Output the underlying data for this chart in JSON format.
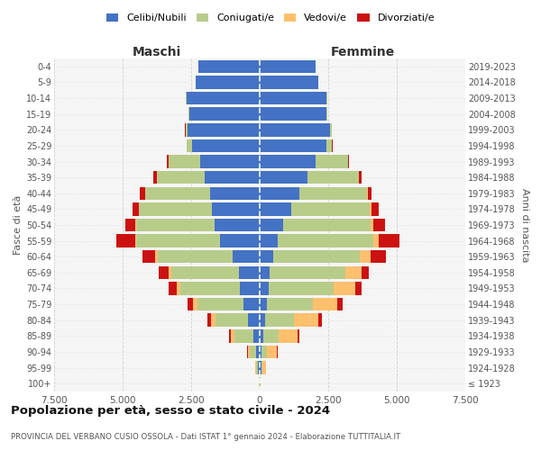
{
  "age_groups": [
    "100+",
    "95-99",
    "90-94",
    "85-89",
    "80-84",
    "75-79",
    "70-74",
    "65-69",
    "60-64",
    "55-59",
    "50-54",
    "45-49",
    "40-44",
    "35-39",
    "30-34",
    "25-29",
    "20-24",
    "15-19",
    "10-14",
    "5-9",
    "0-4"
  ],
  "birth_years": [
    "≤ 1923",
    "1924-1928",
    "1929-1933",
    "1934-1938",
    "1939-1943",
    "1944-1948",
    "1949-1953",
    "1954-1958",
    "1959-1963",
    "1964-1968",
    "1969-1973",
    "1974-1978",
    "1979-1983",
    "1984-1988",
    "1989-1993",
    "1994-1998",
    "1999-2003",
    "2004-2008",
    "2009-2013",
    "2014-2018",
    "2019-2023"
  ],
  "maschi": {
    "celibi": [
      15,
      70,
      120,
      230,
      420,
      580,
      720,
      760,
      980,
      1450,
      1650,
      1750,
      1820,
      2000,
      2180,
      2480,
      2630,
      2580,
      2680,
      2330,
      2230
    ],
    "coniugati": [
      8,
      70,
      240,
      680,
      1180,
      1680,
      2180,
      2450,
      2750,
      3050,
      2850,
      2650,
      2350,
      1750,
      1150,
      180,
      80,
      20,
      8,
      0,
      0
    ],
    "vedovi": [
      4,
      25,
      70,
      140,
      170,
      170,
      140,
      110,
      75,
      45,
      25,
      8,
      4,
      4,
      4,
      0,
      0,
      0,
      0,
      0,
      0
    ],
    "divorziati": [
      2,
      8,
      25,
      70,
      140,
      190,
      280,
      380,
      480,
      680,
      380,
      240,
      190,
      120,
      45,
      18,
      8,
      4,
      0,
      0,
      0
    ]
  },
  "femmine": {
    "celibi": [
      15,
      55,
      75,
      120,
      190,
      260,
      330,
      360,
      480,
      670,
      870,
      1150,
      1450,
      1750,
      2050,
      2450,
      2550,
      2450,
      2450,
      2150,
      2050
    ],
    "coniugati": [
      4,
      40,
      180,
      580,
      1070,
      1680,
      2370,
      2780,
      3170,
      3470,
      3170,
      2870,
      2470,
      1870,
      1170,
      180,
      80,
      20,
      8,
      0,
      0
    ],
    "vedovi": [
      25,
      140,
      380,
      680,
      880,
      880,
      780,
      580,
      380,
      190,
      90,
      45,
      18,
      8,
      4,
      4,
      4,
      0,
      0,
      0,
      0
    ],
    "divorziati": [
      2,
      8,
      25,
      70,
      140,
      190,
      240,
      270,
      580,
      780,
      430,
      280,
      140,
      90,
      45,
      18,
      8,
      4,
      0,
      0,
      0
    ]
  },
  "colors": {
    "celibi": "#4472c4",
    "coniugati": "#b8cc8a",
    "vedovi": "#ffc06e",
    "divorziati": "#cc1111"
  },
  "title": "Popolazione per età, sesso e stato civile - 2024",
  "subtitle": "PROVINCIA DEL VERBANO CUSIO OSSOLA - Dati ISTAT 1° gennaio 2024 - Elaborazione TUTTITALIA.IT",
  "xlabel_left": "Maschi",
  "xlabel_right": "Femmine",
  "ylabel_left": "Fasce di età",
  "ylabel_right": "Anni di nascita",
  "xlim": 7500,
  "legend_labels": [
    "Celibi/Nubili",
    "Coniugati/e",
    "Vedovi/e",
    "Divorziati/e"
  ],
  "bg_color": "#f5f5f5",
  "grid_color": "#cccccc"
}
